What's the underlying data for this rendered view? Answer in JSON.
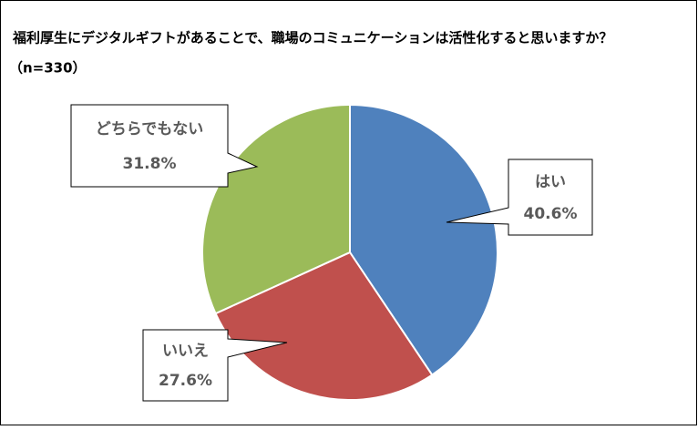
{
  "chart_data": {
    "type": "pie",
    "title": "福利厚生にデジタルギフトがあることで、職場のコミュニケーションは活性化すると思いますか？",
    "subtitle": "（n=330）",
    "categories": [
      "はい",
      "いいえ",
      "どちらでもない"
    ],
    "values": [
      40.6,
      27.6,
      31.8
    ],
    "value_labels": [
      "40.6%",
      "27.6%",
      "31.8%"
    ],
    "colors": [
      "#4f81bd",
      "#c0504d",
      "#9bbb59"
    ]
  }
}
